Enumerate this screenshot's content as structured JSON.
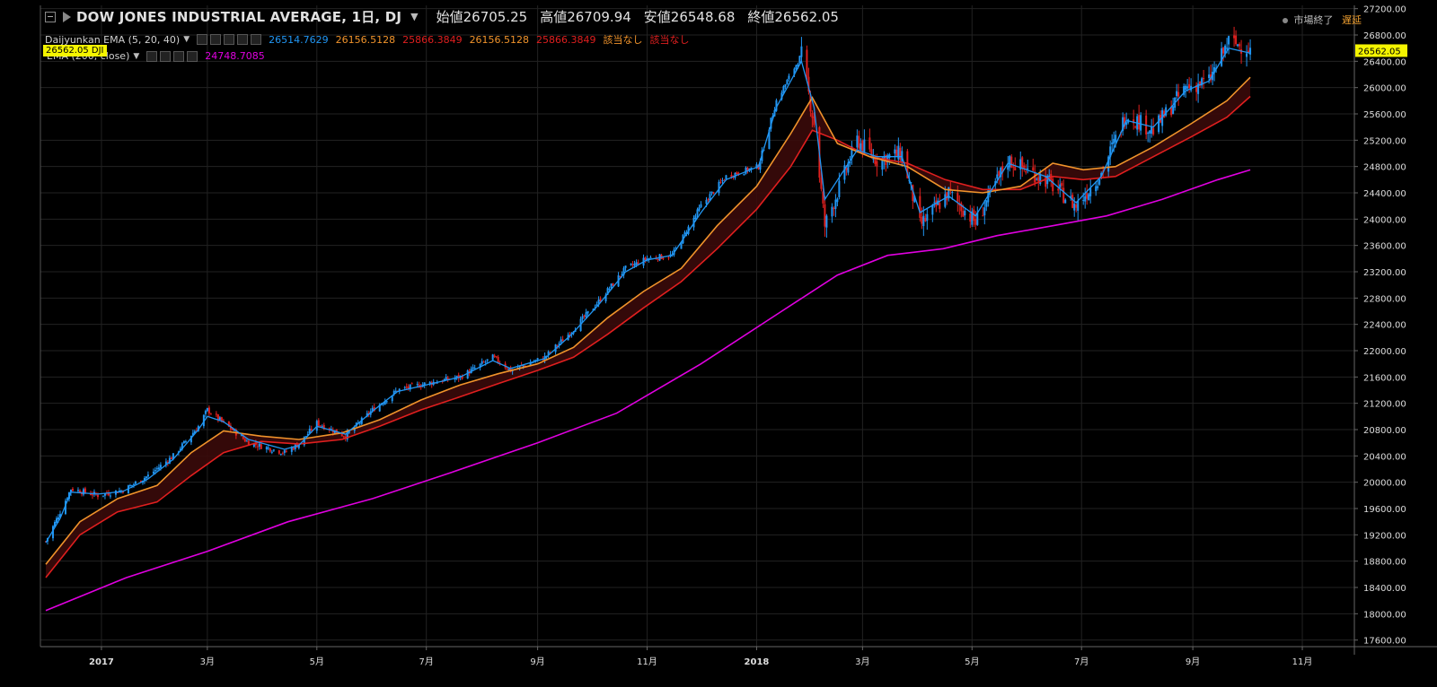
{
  "header": {
    "title": "DOW JONES INDUSTRIAL AVERAGE, 1日, DJ",
    "open_label": "始値",
    "open": "26705.25",
    "high_label": "高値",
    "high": "26709.94",
    "low_label": "安値",
    "low": "26548.68",
    "close_label": "終値",
    "close": "26562.05"
  },
  "status": {
    "market": "市場終了",
    "delay": "遅延"
  },
  "indicators": {
    "ema_multi": {
      "label": "Daijyunkan EMA (5, 20, 40)",
      "values": [
        "26514.7629",
        "26156.5128",
        "25866.3849",
        "26156.5128",
        "25866.3849",
        "該当なし",
        "該当なし"
      ],
      "colors": [
        "#2196f3",
        "#f0932b",
        "#e01f1f",
        "#f0932b",
        "#e01f1f",
        "#f0932b",
        "#e01f1f"
      ]
    },
    "ema_200": {
      "label": "EMA (200, close)",
      "value": "24748.7085",
      "color": "#e000e0"
    }
  },
  "price_badge": {
    "value": "26562.05",
    "symbol": "DJI"
  },
  "chart_data": {
    "type": "line",
    "x_axis_labels": [
      "2017",
      "3月",
      "5月",
      "7月",
      "9月",
      "11月",
      "2018",
      "3月",
      "5月",
      "7月",
      "9月",
      "11月"
    ],
    "y_ticks": [
      17600,
      18000,
      18400,
      18800,
      19200,
      19600,
      20000,
      20400,
      20800,
      21200,
      21600,
      22000,
      22400,
      22800,
      23200,
      23600,
      24000,
      24400,
      24800,
      25200,
      25600,
      26000,
      26400,
      26800,
      27200
    ],
    "y_tick_format": "two_decimals",
    "ylim": [
      17500,
      27250
    ],
    "grid": true,
    "series": [
      {
        "name": "DOW JONES INDUSTRIAL AVERAGE",
        "color": "#2196f3",
        "candle_colors": {
          "up": "#2196f3",
          "down": "#e0201f"
        },
        "x": [
          "2016-12-01",
          "2016-12-09",
          "2016-12-15",
          "2016-12-30",
          "2017-01-13",
          "2017-01-27",
          "2017-02-10",
          "2017-02-24",
          "2017-03-01",
          "2017-03-10",
          "2017-03-24",
          "2017-04-13",
          "2017-04-21",
          "2017-05-01",
          "2017-05-17",
          "2017-06-01",
          "2017-06-15",
          "2017-07-01",
          "2017-07-20",
          "2017-08-07",
          "2017-08-17",
          "2017-09-05",
          "2017-09-20",
          "2017-10-05",
          "2017-10-20",
          "2017-11-01",
          "2017-11-15",
          "2017-12-01",
          "2017-12-15",
          "2018-01-02",
          "2018-01-12",
          "2018-01-26",
          "2018-02-02",
          "2018-02-08",
          "2018-02-26",
          "2018-03-09",
          "2018-03-23",
          "2018-04-02",
          "2018-04-18",
          "2018-05-03",
          "2018-05-21",
          "2018-06-11",
          "2018-06-28",
          "2018-07-12",
          "2018-07-26",
          "2018-08-10",
          "2018-08-28",
          "2018-09-10",
          "2018-09-21",
          "2018-10-02",
          "2018-10-03"
        ],
        "y": [
          19100,
          19550,
          19900,
          19800,
          19880,
          20100,
          20400,
          20850,
          21100,
          20900,
          20600,
          20450,
          20580,
          20900,
          20700,
          21100,
          21400,
          21500,
          21600,
          21900,
          21700,
          21900,
          22300,
          22750,
          23250,
          23400,
          23450,
          24200,
          24650,
          24800,
          25800,
          26500,
          25450,
          23900,
          25200,
          24900,
          25000,
          23900,
          24400,
          23950,
          24900,
          24600,
          24200,
          24700,
          25600,
          25350,
          26000,
          26100,
          26700,
          26600,
          26562
        ]
      },
      {
        "name": "EMA 5",
        "color": "#2196f3",
        "x": [
          "2016-12-01",
          "2016-12-09",
          "2016-12-15",
          "2016-12-30",
          "2017-01-13",
          "2017-01-27",
          "2017-02-10",
          "2017-02-24",
          "2017-03-01",
          "2017-03-10",
          "2017-03-24",
          "2017-04-13",
          "2017-04-21",
          "2017-05-01",
          "2017-05-17",
          "2017-06-01",
          "2017-06-15",
          "2017-07-01",
          "2017-07-20",
          "2017-08-07",
          "2017-08-17",
          "2017-09-05",
          "2017-09-20",
          "2017-10-05",
          "2017-10-20",
          "2017-11-01",
          "2017-11-15",
          "2017-12-01",
          "2017-12-15",
          "2018-01-02",
          "2018-01-12",
          "2018-01-26",
          "2018-02-02",
          "2018-02-08",
          "2018-02-26",
          "2018-03-09",
          "2018-03-23",
          "2018-04-02",
          "2018-04-18",
          "2018-05-03",
          "2018-05-21",
          "2018-06-11",
          "2018-06-28",
          "2018-07-12",
          "2018-07-26",
          "2018-08-10",
          "2018-08-28",
          "2018-09-10",
          "2018-09-21",
          "2018-10-02",
          "2018-10-03"
        ],
        "y": [
          19080,
          19450,
          19850,
          19820,
          19860,
          20050,
          20350,
          20800,
          21000,
          20920,
          20650,
          20500,
          20560,
          20850,
          20730,
          21080,
          21380,
          21480,
          21600,
          21850,
          21730,
          21880,
          22250,
          22700,
          23200,
          23380,
          23450,
          24100,
          24600,
          24800,
          25700,
          26400,
          25700,
          24300,
          25050,
          24950,
          24950,
          24100,
          24350,
          24050,
          24850,
          24650,
          24250,
          24650,
          25500,
          25400,
          25950,
          26100,
          26600,
          26530,
          26514
        ]
      },
      {
        "name": "EMA 20",
        "color": "#f0932b",
        "x": [
          "2016-12-01",
          "2016-12-20",
          "2017-01-10",
          "2017-02-01",
          "2017-02-20",
          "2017-03-10",
          "2017-03-31",
          "2017-04-21",
          "2017-05-15",
          "2017-06-05",
          "2017-06-28",
          "2017-07-20",
          "2017-08-10",
          "2017-09-01",
          "2017-09-21",
          "2017-10-10",
          "2017-10-30",
          "2017-11-20",
          "2017-12-10",
          "2018-01-01",
          "2018-01-20",
          "2018-02-01",
          "2018-02-15",
          "2018-03-05",
          "2018-03-26",
          "2018-04-16",
          "2018-05-07",
          "2018-05-28",
          "2018-06-15",
          "2018-07-02",
          "2018-07-20",
          "2018-08-10",
          "2018-08-31",
          "2018-09-20",
          "2018-10-03"
        ],
        "y": [
          18750,
          19400,
          19750,
          19950,
          20450,
          20780,
          20700,
          20650,
          20750,
          20950,
          21250,
          21480,
          21650,
          21800,
          22050,
          22500,
          22900,
          23250,
          23900,
          24500,
          25300,
          25850,
          25150,
          24950,
          24800,
          24450,
          24400,
          24500,
          24850,
          24750,
          24800,
          25100,
          25450,
          25800,
          26156
        ]
      },
      {
        "name": "EMA 40",
        "color": "#e01f1f",
        "x": [
          "2016-12-01",
          "2016-12-20",
          "2017-01-10",
          "2017-02-01",
          "2017-02-20",
          "2017-03-10",
          "2017-03-31",
          "2017-04-21",
          "2017-05-15",
          "2017-06-05",
          "2017-06-28",
          "2017-07-20",
          "2017-08-10",
          "2017-09-01",
          "2017-09-21",
          "2017-10-10",
          "2017-10-30",
          "2017-11-20",
          "2017-12-10",
          "2018-01-01",
          "2018-01-20",
          "2018-02-01",
          "2018-02-15",
          "2018-03-05",
          "2018-03-26",
          "2018-04-16",
          "2018-05-07",
          "2018-05-28",
          "2018-06-15",
          "2018-07-02",
          "2018-07-20",
          "2018-08-10",
          "2018-08-31",
          "2018-09-20",
          "2018-10-03"
        ],
        "y": [
          18550,
          19200,
          19550,
          19700,
          20100,
          20450,
          20620,
          20580,
          20650,
          20850,
          21100,
          21300,
          21500,
          21700,
          21900,
          22250,
          22650,
          23050,
          23550,
          24150,
          24800,
          25350,
          25200,
          24950,
          24850,
          24600,
          24450,
          24450,
          24650,
          24600,
          24650,
          24950,
          25250,
          25550,
          25866
        ]
      },
      {
        "name": "EMA 200",
        "color": "#e000e0",
        "x": [
          "2016-12-01",
          "2017-01-15",
          "2017-03-01",
          "2017-04-15",
          "2017-06-01",
          "2017-07-15",
          "2017-09-01",
          "2017-10-15",
          "2017-12-01",
          "2018-01-15",
          "2018-02-15",
          "2018-03-15",
          "2018-04-15",
          "2018-05-15",
          "2018-06-15",
          "2018-07-15",
          "2018-08-15",
          "2018-09-15",
          "2018-10-03"
        ],
        "y": [
          18050,
          18550,
          18950,
          19400,
          19750,
          20150,
          20600,
          21050,
          21800,
          22600,
          23150,
          23450,
          23550,
          23750,
          23900,
          24050,
          24300,
          24600,
          24749
        ]
      }
    ]
  }
}
